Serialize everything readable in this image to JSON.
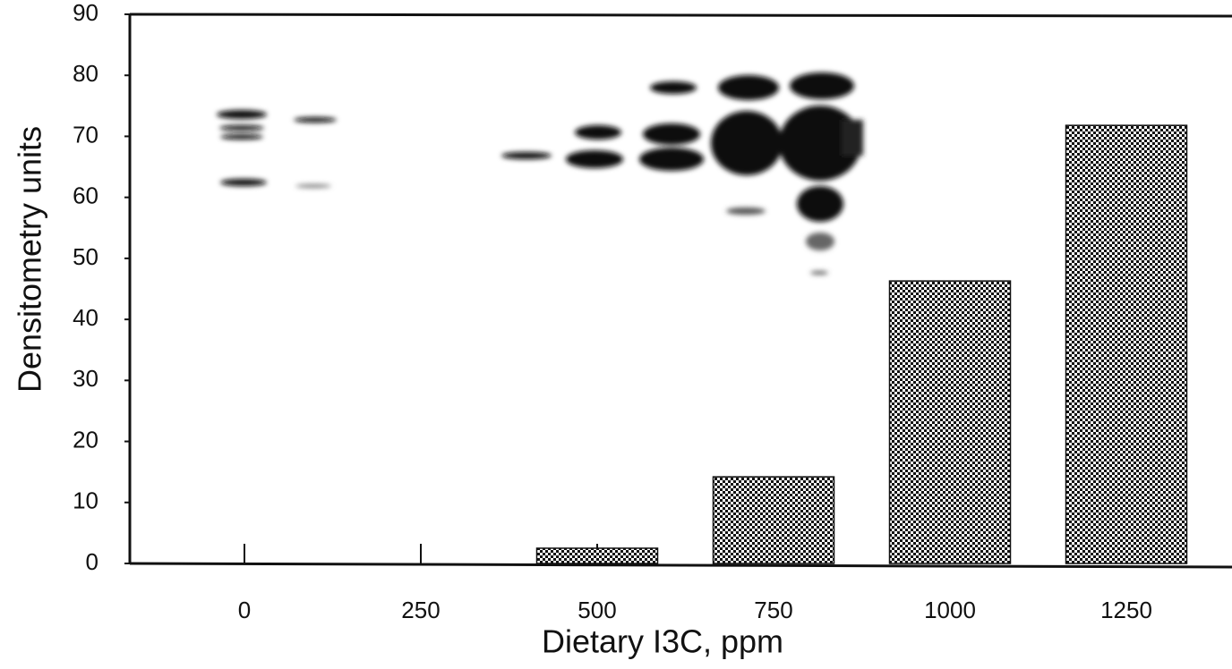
{
  "chart_data": {
    "type": "bar",
    "xlabel": "Dietary I3C, ppm",
    "ylabel": "Densitometry units",
    "categories": [
      "0",
      "250",
      "500",
      "750",
      "1000",
      "1250"
    ],
    "values": [
      0,
      0,
      2.5,
      14.2,
      46.3,
      71.8
    ],
    "color": "#111111",
    "ylim": [
      0,
      90
    ],
    "yticks": [
      0,
      10,
      20,
      30,
      40,
      50,
      60,
      70,
      80,
      90
    ]
  }
}
